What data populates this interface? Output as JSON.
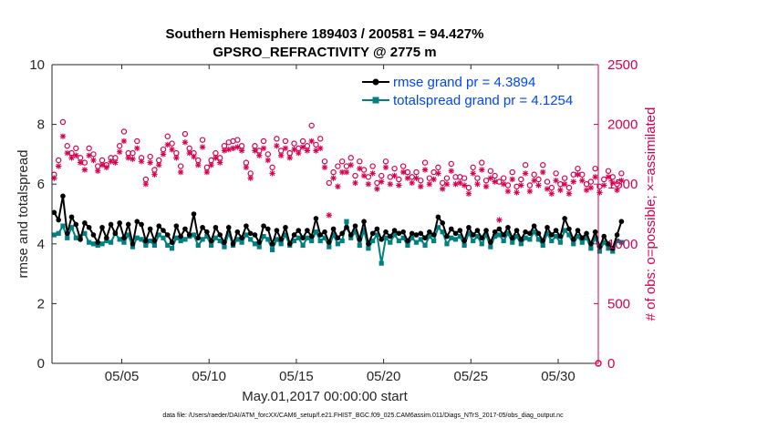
{
  "chart_data": {
    "type": "line",
    "title_line1": "Southern Hemisphere 189403 / 200581 = 94.427%",
    "title_line2": "GPSRO_REFRACTIVITY @ 2775 m",
    "xlabel": "May.01,2017 00:00:00 start",
    "ylabel_left": "rmse and totalspread",
    "ylabel_right": "# of obs: o=possible; ×=assimilated",
    "xlim": [
      1,
      32.3
    ],
    "ylim_left": [
      0,
      10
    ],
    "ylim_right": [
      0,
      2500
    ],
    "x_ticks": [
      5,
      10,
      15,
      20,
      25,
      30
    ],
    "x_tick_labels": [
      "05/05",
      "05/10",
      "05/15",
      "05/20",
      "05/25",
      "05/30"
    ],
    "y_ticks_left": [
      0,
      2,
      4,
      6,
      8,
      10
    ],
    "y_tick_labels_left": [
      "0",
      "2",
      "4",
      "6",
      "8",
      "10"
    ],
    "y_ticks_right": [
      0,
      500,
      1000,
      1500,
      2000,
      2500
    ],
    "y_tick_labels_right": [
      "0",
      "500",
      "1000",
      "1500",
      "2000",
      "2500"
    ],
    "legend_position": "top-right",
    "series": [
      {
        "name": "rmse grand pr = 4.3894",
        "axis": "left",
        "color": "#000000",
        "values": [
          5.05,
          4.8,
          5.6,
          4.35,
          4.9,
          4.65,
          4.15,
          4.7,
          4.55,
          4.3,
          4.05,
          4.55,
          4.2,
          4.65,
          4.35,
          4.7,
          4.2,
          4.65,
          4.0,
          4.75,
          4.65,
          4.1,
          4.5,
          4.1,
          4.6,
          4.45,
          4.3,
          4.05,
          4.6,
          4.25,
          4.5,
          4.3,
          5.0,
          4.2,
          4.55,
          4.4,
          4.1,
          4.55,
          4.3,
          4.05,
          4.55,
          4.0,
          4.4,
          4.2,
          4.6,
          4.35,
          4.3,
          4.05,
          4.6,
          4.5,
          4.0,
          4.45,
          4.15,
          4.55,
          4.0,
          4.3,
          4.45,
          4.2,
          4.45,
          4.25,
          4.85,
          4.3,
          4.4,
          4.05,
          4.5,
          4.2,
          4.35,
          4.55,
          4.3,
          4.6,
          4.15,
          4.75,
          4.0,
          4.35,
          4.5,
          4.15,
          4.4,
          4.25,
          4.45,
          4.35,
          4.4,
          4.1,
          4.35,
          4.3,
          4.35,
          4.2,
          4.4,
          4.3,
          4.9,
          4.7,
          4.25,
          4.5,
          4.35,
          4.45,
          4.1,
          4.55,
          4.3,
          4.45,
          4.2,
          4.45,
          4.05,
          4.4,
          4.5,
          4.3,
          4.55,
          4.2,
          4.45,
          4.15,
          4.4,
          4.35,
          4.6,
          4.35,
          4.1,
          4.55,
          4.3,
          4.45,
          4.25,
          4.85,
          4.5,
          4.15,
          4.45,
          4.2,
          4.35,
          4.0,
          4.4,
          3.9,
          4.25,
          4.0,
          3.85,
          4.3,
          4.75
        ]
      },
      {
        "name": "totalspread grand pr = 4.1254",
        "axis": "left",
        "color": "#008080",
        "values": [
          4.3,
          4.35,
          4.6,
          4.2,
          4.55,
          4.2,
          4.25,
          4.35,
          4.05,
          4.0,
          3.95,
          4.0,
          4.1,
          4.05,
          4.35,
          4.15,
          4.05,
          4.3,
          3.9,
          4.2,
          4.15,
          3.95,
          4.1,
          3.95,
          4.3,
          4.2,
          3.95,
          3.85,
          4.2,
          4.1,
          4.15,
          4.25,
          4.3,
          3.95,
          4.15,
          4.25,
          3.95,
          4.2,
          4.1,
          3.9,
          4.35,
          3.95,
          4.15,
          4.05,
          4.3,
          4.15,
          4.0,
          3.9,
          4.25,
          4.15,
          3.8,
          4.15,
          4.0,
          4.3,
          3.95,
          4.1,
          4.2,
          3.95,
          4.2,
          4.1,
          4.4,
          4.1,
          4.2,
          3.9,
          4.3,
          4.0,
          4.1,
          4.75,
          4.2,
          4.4,
          3.95,
          4.45,
          3.85,
          4.1,
          4.3,
          3.35,
          4.2,
          4.05,
          4.3,
          4.1,
          4.2,
          3.95,
          4.2,
          4.05,
          4.15,
          3.95,
          4.25,
          4.1,
          4.55,
          4.4,
          4.0,
          4.2,
          4.15,
          4.25,
          3.95,
          4.35,
          4.1,
          4.25,
          4.0,
          4.3,
          3.9,
          4.25,
          4.3,
          4.1,
          4.35,
          4.05,
          4.25,
          4.0,
          4.2,
          4.15,
          4.4,
          4.15,
          3.95,
          4.35,
          4.1,
          4.25,
          4.05,
          4.45,
          4.3,
          4.0,
          4.25,
          4.05,
          4.2,
          3.85,
          4.2,
          3.75,
          4.05,
          3.85,
          3.75,
          4.1,
          4.05
        ]
      },
      {
        "name": "# of obs possible (o)",
        "axis": "right",
        "color": "#d6004f",
        "values": [
          1580,
          1700,
          2020,
          1820,
          1760,
          1800,
          1720,
          1680,
          1800,
          1750,
          1650,
          1700,
          1660,
          1720,
          1720,
          1820,
          1940,
          1760,
          1760,
          1860,
          1720,
          1540,
          1730,
          1620,
          1700,
          1790,
          1900,
          1840,
          1760,
          1650,
          1920,
          1800,
          1760,
          1700,
          1870,
          1640,
          1700,
          1760,
          1720,
          1820,
          1850,
          1860,
          1870,
          1820,
          1680,
          1590,
          1820,
          1780,
          1860,
          1750,
          1640,
          1880,
          1780,
          1860,
          1760,
          1840,
          1800,
          1860,
          1820,
          1990,
          1830,
          1880,
          1690,
          1510,
          1600,
          1650,
          1690,
          1650,
          1720,
          1570,
          1690,
          1620,
          1560,
          1650,
          1510,
          1570,
          1690,
          1560,
          1630,
          1540,
          1650,
          1600,
          1560,
          1600,
          1530,
          1680,
          1550,
          1600,
          1640,
          1510,
          1550,
          1670,
          1560,
          1560,
          1550,
          1470,
          1640,
          1550,
          1680,
          1530,
          1610,
          1570,
          1520,
          1550,
          1490,
          1600,
          1480,
          1540,
          1660,
          1490,
          1580,
          1540,
          1660,
          1520,
          1470,
          1590,
          1500,
          1550,
          1470,
          1580,
          1630,
          1580,
          1500,
          1520,
          1630,
          1480,
          1540,
          1610,
          1560,
          1500,
          1590
        ]
      },
      {
        "name": "# of obs assimilated (×)",
        "axis": "right",
        "color": "#d6004f",
        "values": [
          1550,
          1650,
          1900,
          1760,
          1720,
          1740,
          1680,
          1620,
          1740,
          1700,
          1610,
          1660,
          1640,
          1690,
          1680,
          1770,
          1860,
          1720,
          1710,
          1800,
          1690,
          1500,
          1680,
          1580,
          1660,
          1750,
          1830,
          1790,
          1720,
          1600,
          1850,
          1760,
          1730,
          1660,
          1810,
          1600,
          1660,
          1720,
          1680,
          1780,
          1790,
          1800,
          1810,
          1780,
          1640,
          1550,
          1780,
          1740,
          1800,
          1700,
          1590,
          1820,
          1740,
          1800,
          1720,
          1790,
          1760,
          1810,
          1780,
          1860,
          1780,
          1800,
          1640,
          1240,
          1550,
          1480,
          1600,
          1600,
          1660,
          1510,
          1630,
          1570,
          1500,
          1590,
          1460,
          1520,
          1640,
          1500,
          1570,
          1490,
          1600,
          1550,
          1510,
          1550,
          1480,
          1620,
          1500,
          1540,
          1590,
          1460,
          1500,
          1610,
          1500,
          1510,
          1490,
          1420,
          1590,
          1500,
          1620,
          1480,
          1550,
          1520,
          1200,
          1500,
          1440,
          1540,
          1430,
          1490,
          1590,
          1440,
          1530,
          1490,
          1600,
          1460,
          1420,
          1530,
          1450,
          1500,
          1420,
          1520,
          1580,
          1530,
          1450,
          1470,
          1560,
          1430,
          1490,
          1560,
          1510,
          1450,
          1530
        ]
      }
    ],
    "footer": "data file: /Users/raeder/DAI/ATM_forcXX/CAM6_setup/f.e21.FHIST_BGC.f09_025.CAM6assim.011/Diags_NTrS_2017-05/obs_diag_output.nc"
  }
}
